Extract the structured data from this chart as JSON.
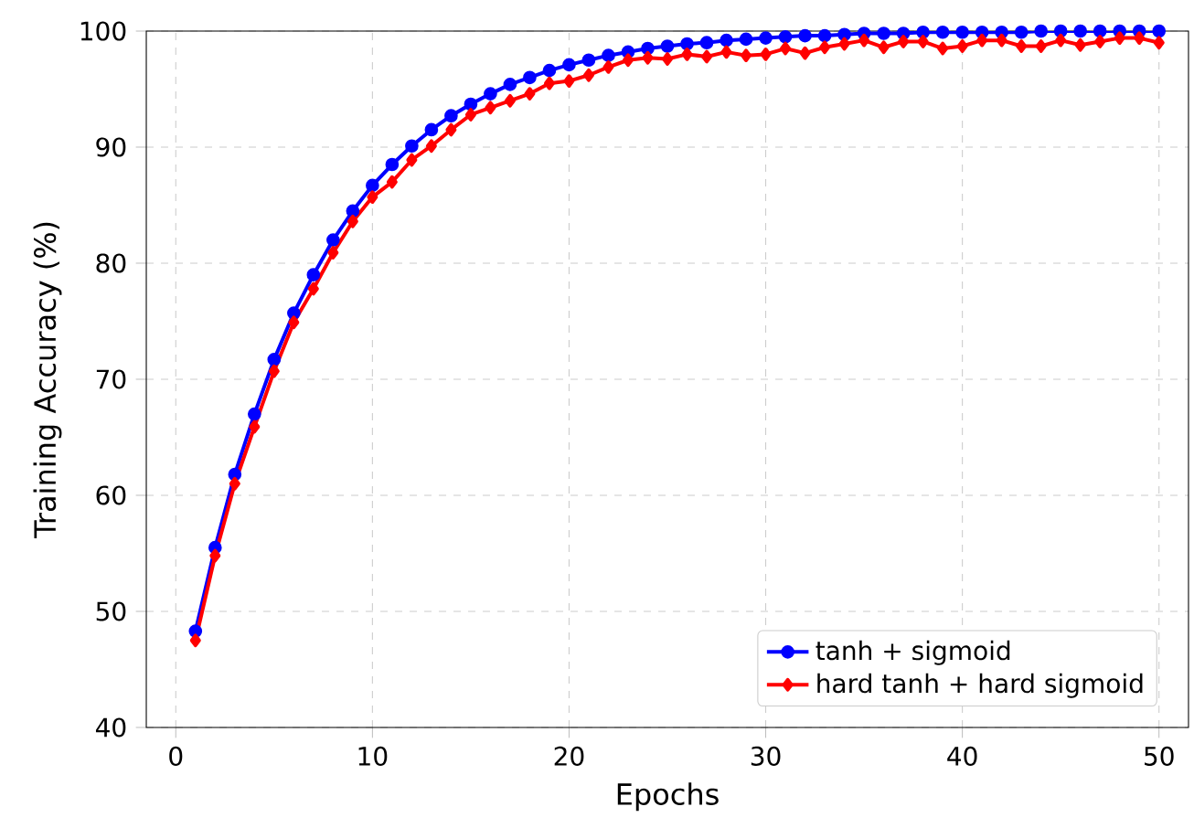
{
  "chart_data": {
    "type": "line",
    "xlabel": "Epochs",
    "ylabel": "Training Accuracy (%)",
    "x": [
      1,
      2,
      3,
      4,
      5,
      6,
      7,
      8,
      9,
      10,
      11,
      12,
      13,
      14,
      15,
      16,
      17,
      18,
      19,
      20,
      21,
      22,
      23,
      24,
      25,
      26,
      27,
      28,
      29,
      30,
      31,
      32,
      33,
      34,
      35,
      36,
      37,
      38,
      39,
      40,
      41,
      42,
      43,
      44,
      45,
      46,
      47,
      48,
      49,
      50
    ],
    "series": [
      {
        "name": "tanh + sigmoid",
        "color": "#0000ff",
        "marker": "circle",
        "values": [
          48.3,
          55.5,
          61.8,
          67,
          71.7,
          75.7,
          79,
          82,
          84.5,
          86.7,
          88.5,
          90.1,
          91.5,
          92.7,
          93.7,
          94.6,
          95.4,
          96,
          96.6,
          97.1,
          97.5,
          97.9,
          98.2,
          98.5,
          98.7,
          98.9,
          99.0,
          99.2,
          99.3,
          99.4,
          99.5,
          99.6,
          99.6,
          99.7,
          99.8,
          99.8,
          99.8,
          99.9,
          99.9,
          99.9,
          99.9,
          99.9,
          99.9,
          100,
          100,
          100,
          100,
          100,
          100,
          100
        ]
      },
      {
        "name": "hard tanh + hard sigmoid",
        "color": "#ff0000",
        "marker": "diamond",
        "values": [
          47.5,
          54.8,
          61,
          65.9,
          70.7,
          74.9,
          77.8,
          80.9,
          83.6,
          85.7,
          87,
          88.9,
          90.1,
          91.5,
          92.8,
          93.4,
          94,
          94.6,
          95.5,
          95.7,
          96.2,
          96.9,
          97.5,
          97.7,
          97.6,
          98,
          97.8,
          98.2,
          97.9,
          98,
          98.5,
          98.1,
          98.6,
          98.9,
          99.2,
          98.6,
          99.1,
          99.1,
          98.5,
          98.7,
          99.2,
          99.2,
          98.7,
          98.7,
          99.2,
          98.8,
          99.1,
          99.4,
          99.4,
          99.0
        ]
      }
    ],
    "xlim": [
      -1.5,
      51.5
    ],
    "ylim": [
      40,
      100
    ],
    "xticks": [
      0,
      10,
      20,
      30,
      40,
      50
    ],
    "yticks": [
      40,
      50,
      60,
      70,
      80,
      90,
      100
    ],
    "grid": true,
    "legend": "bottom right",
    "line_style": "solid"
  }
}
